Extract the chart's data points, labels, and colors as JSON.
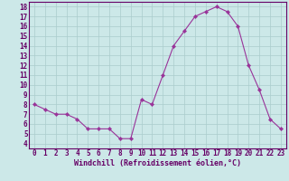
{
  "x": [
    0,
    1,
    2,
    3,
    4,
    5,
    6,
    7,
    8,
    9,
    10,
    11,
    12,
    13,
    14,
    15,
    16,
    17,
    18,
    19,
    20,
    21,
    22,
    23
  ],
  "y": [
    8.0,
    7.5,
    7.0,
    7.0,
    6.5,
    5.5,
    5.5,
    5.5,
    4.5,
    4.5,
    8.5,
    8.0,
    11.0,
    14.0,
    15.5,
    17.0,
    17.5,
    18.0,
    17.5,
    16.0,
    12.0,
    9.5,
    6.5,
    5.5
  ],
  "xlabel": "Windchill (Refroidissement éolien,°C)",
  "xlim": [
    -0.5,
    23.5
  ],
  "ylim": [
    3.5,
    18.5
  ],
  "yticks": [
    4,
    5,
    6,
    7,
    8,
    9,
    10,
    11,
    12,
    13,
    14,
    15,
    16,
    17,
    18
  ],
  "xticks": [
    0,
    1,
    2,
    3,
    4,
    5,
    6,
    7,
    8,
    9,
    10,
    11,
    12,
    13,
    14,
    15,
    16,
    17,
    18,
    19,
    20,
    21,
    22,
    23
  ],
  "line_color": "#993399",
  "marker_color": "#993399",
  "bg_color": "#cce8e8",
  "grid_color": "#aacccc",
  "axes_color": "#660066",
  "spine_color": "#660066",
  "tick_fontsize": 5.5,
  "xlabel_fontsize": 6.0,
  "linewidth": 0.8,
  "markersize": 2.2
}
